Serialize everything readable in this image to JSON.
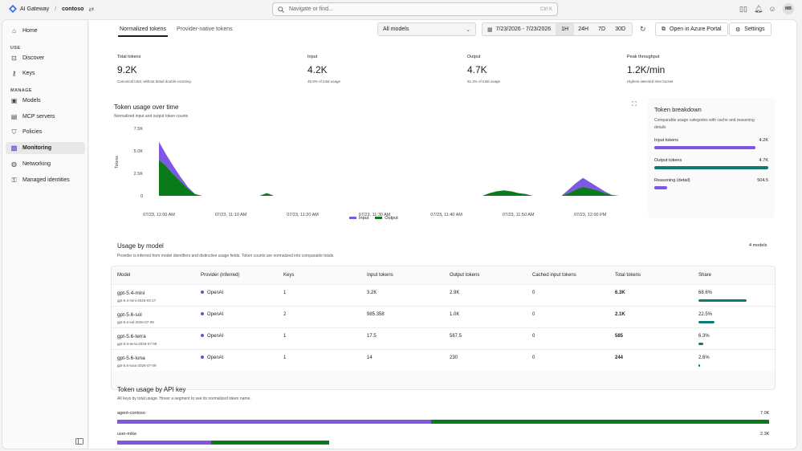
{
  "app": {
    "name": "AI Gateway",
    "org": "contoso"
  },
  "search": {
    "placeholder": "Navigate or find...",
    "shortcut": "Ctrl K"
  },
  "user": {
    "initials": "MB"
  },
  "sidebar": {
    "home": "Home",
    "section_use": "USE",
    "discover": "Discover",
    "keys": "Keys",
    "section_manage": "MANAGE",
    "models": "Models",
    "mcp": "MCP servers",
    "policies": "Policies",
    "monitoring": "Monitoring",
    "networking": "Networking",
    "identities": "Managed identities"
  },
  "tabs": [
    "Normalized tokens",
    "Provider-native tokens"
  ],
  "filters": {
    "model": "All models",
    "date_range": "7/23/2026 - 7/23/2026",
    "ranges": [
      "1H",
      "24H",
      "7D",
      "30D"
    ],
    "open_portal": "Open in Azure Portal",
    "settings": "Settings"
  },
  "stats": [
    {
      "label": "Total tokens",
      "value": "9.2K",
      "sub": "Canonical total, without detail double-counting"
    },
    {
      "label": "Input",
      "value": "4.2K",
      "sub": "45.9% of total usage"
    },
    {
      "label": "Output",
      "value": "4.7K",
      "sub": "51.3% of total usage"
    },
    {
      "label": "Peak throughput",
      "value": "1.2K/min",
      "sub": "Highest selected time bucket"
    }
  ],
  "token_chart": {
    "title": "Token usage over time",
    "subtitle": "Normalized input and output token counts"
  },
  "chart_data": {
    "type": "area",
    "ylabel": "Tokens",
    "yticks": [
      "0",
      "2.5K",
      "5.0K",
      "7.5K"
    ],
    "ylim": [
      0,
      7500
    ],
    "x_tick_labels": [
      "07/23, 11:00 AM",
      "07/23, 11:10 AM",
      "07/23, 11:20 AM",
      "07/23, 11:30 AM",
      "07/23, 11:40 AM",
      "07/23, 11:50 AM",
      "07/23, 12:00 PM"
    ],
    "x": [
      0,
      1,
      2,
      3,
      4,
      5,
      6,
      7,
      8,
      9,
      10,
      11,
      12,
      13,
      14,
      15,
      16,
      17,
      18,
      19,
      20,
      21,
      22,
      23,
      24,
      25,
      26,
      27,
      28,
      29,
      30,
      31,
      32,
      33,
      34,
      35,
      36,
      37,
      38,
      39,
      40,
      41,
      42,
      43,
      44,
      45,
      46,
      47,
      48,
      49,
      50,
      51,
      52,
      53,
      54,
      55,
      56,
      57,
      58,
      59,
      60,
      61,
      62,
      63,
      64
    ],
    "series": [
      {
        "name": "Output",
        "color": "#0b7a1a",
        "values": [
          4000,
          3300,
          2400,
          1600,
          800,
          200,
          0,
          0,
          0,
          0,
          0,
          0,
          0,
          0,
          0,
          300,
          0,
          0,
          0,
          0,
          0,
          0,
          0,
          0,
          0,
          0,
          0,
          0,
          0,
          0,
          0,
          0,
          0,
          0,
          0,
          0,
          0,
          0,
          0,
          0,
          0,
          0,
          0,
          0,
          0,
          0,
          300,
          500,
          600,
          500,
          300,
          200,
          0,
          0,
          0,
          0,
          0,
          300,
          700,
          1000,
          800,
          600,
          300,
          100,
          0
        ]
      },
      {
        "name": "Input",
        "color": "#7e57e3",
        "values": [
          2000,
          1300,
          900,
          500,
          200,
          0,
          0,
          0,
          0,
          0,
          0,
          0,
          0,
          0,
          0,
          0,
          0,
          0,
          0,
          0,
          0,
          0,
          0,
          0,
          0,
          0,
          0,
          0,
          0,
          0,
          0,
          0,
          0,
          0,
          0,
          0,
          0,
          0,
          0,
          0,
          0,
          0,
          0,
          0,
          0,
          0,
          0,
          0,
          0,
          0,
          0,
          0,
          0,
          0,
          0,
          0,
          0,
          400,
          700,
          1000,
          700,
          400,
          200,
          0,
          0
        ]
      }
    ],
    "legend": [
      "Input",
      "Output"
    ],
    "legend_position": "bottom-center",
    "grid": false
  },
  "breakdown": {
    "title": "Token breakdown",
    "subtitle": "Comparable usage categories with cache and reasoning details",
    "rows": [
      {
        "label": "Input tokens",
        "value": "4.2K",
        "fill": 0.89,
        "color": "#7e57e3"
      },
      {
        "label": "Output tokens",
        "value": "4.7K",
        "fill": 1.0,
        "color": "#0e7a70"
      },
      {
        "label": "Reasoning (detail)",
        "value": "504.5",
        "fill": 0.11,
        "color": "#7e57e3"
      }
    ]
  },
  "usage_by_model": {
    "title": "Usage by model",
    "subtitle": "Provider is inferred from model identifiers and distinctive usage fields. Token counts are normalized into comparable totals.",
    "count": "4 models",
    "columns": [
      "Model",
      "Provider (inferred)",
      "Keys",
      "Input tokens",
      "Output tokens",
      "Cached input tokens",
      "Total tokens",
      "Share"
    ],
    "rows": [
      {
        "model": "gpt-5.4-mini",
        "model_id": "gpt-5.4-mini-2026-03-17",
        "provider": "OpenAI",
        "keys": "1",
        "input": "3.2K",
        "output": "2.9K",
        "cached": "0",
        "total": "6.3K",
        "share": "68.6%",
        "share_frac": 0.686
      },
      {
        "model": "gpt-5.6-sol",
        "model_id": "gpt-5.6-sol-2026-07-09",
        "provider": "OpenAI",
        "keys": "2",
        "input": "985.358",
        "output": "1.0K",
        "cached": "0",
        "total": "2.1K",
        "share": "22.5%",
        "share_frac": 0.225
      },
      {
        "model": "gpt-5.6-terra",
        "model_id": "gpt-5.6-terra-2026-07-09",
        "provider": "OpenAI",
        "keys": "1",
        "input": "17.5",
        "output": "567.5",
        "cached": "0",
        "total": "585",
        "share": "6.3%",
        "share_frac": 0.063
      },
      {
        "model": "gpt-5.6-luna",
        "model_id": "gpt-5.6-luna-2026-07-09",
        "provider": "OpenAI",
        "keys": "1",
        "input": "14",
        "output": "230",
        "cached": "0",
        "total": "244",
        "share": "2.6%",
        "share_frac": 0.026
      }
    ]
  },
  "api_keys": {
    "title": "Token usage by API key",
    "subtitle": "All keys by total usage. Hover a segment to see its normalized token name.",
    "rows": [
      {
        "name": "agent-contoso",
        "total": "7.0K",
        "input_frac": 0.482,
        "output_frac": 0.518
      },
      {
        "name": "user-mike",
        "total": "2.3K",
        "input_frac": 0.144,
        "output_frac": 0.181
      }
    ]
  },
  "colors": {
    "input": "#7e57e3",
    "output": "#0b7a1a",
    "teal": "#0e7a70"
  }
}
